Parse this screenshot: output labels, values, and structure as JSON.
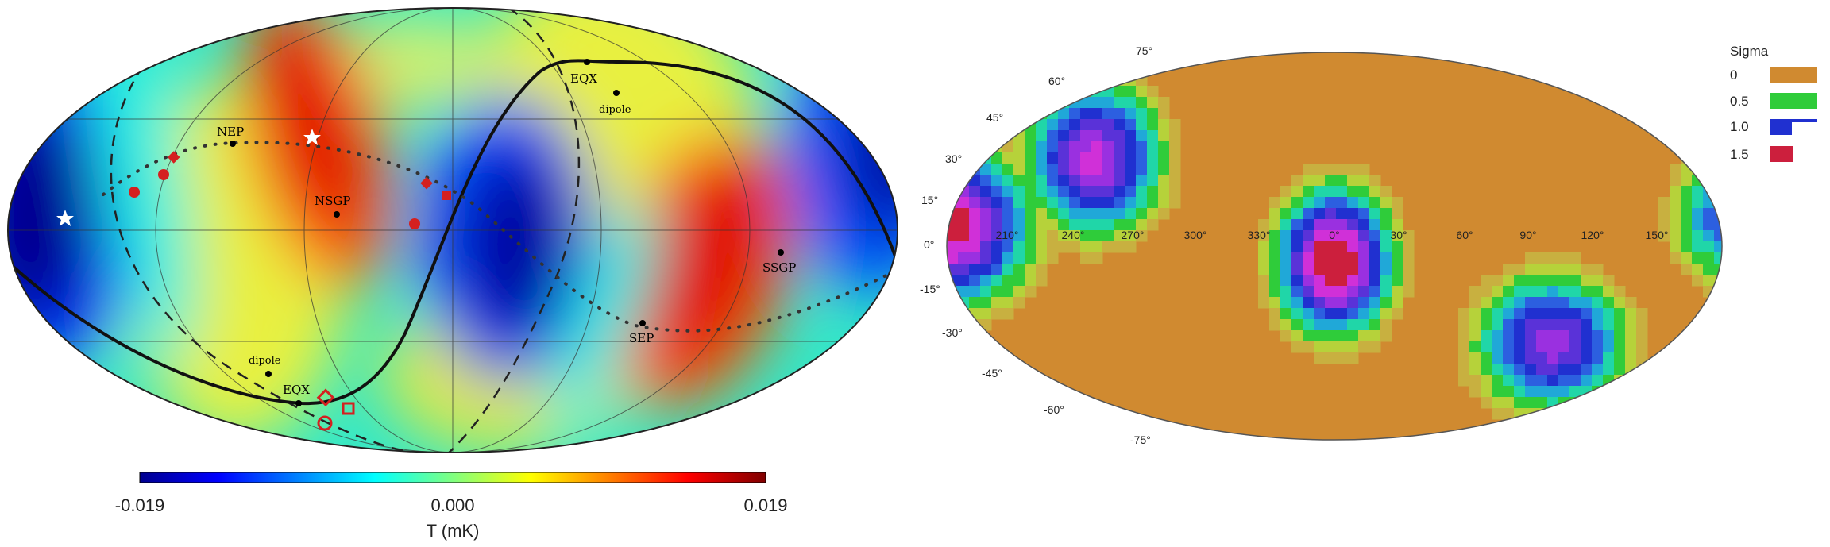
{
  "left_map": {
    "colorbar": {
      "min_label": "-0.019",
      "mid_label": "0.000",
      "max_label": "0.019",
      "range": [
        -0.019,
        0.019
      ],
      "unit_label": "T (mK)"
    },
    "labels": {
      "nep": "NEP",
      "nsgp": "NSGP",
      "eqx_top": "EQX",
      "dipole_top": "dipole",
      "ssgp": "SSGP",
      "sep": "SEP",
      "dipole_bottom": "dipole",
      "eqx_bottom": "EQX"
    },
    "colors": {
      "cold": "#00008f",
      "hot": "#8f0000",
      "marker_red": "#d42020",
      "line_black": "#111111"
    }
  },
  "right_map": {
    "legend": {
      "title": "Sigma",
      "items": [
        {
          "label": "0",
          "color": "#d08a30"
        },
        {
          "label": "0.5",
          "color": "#2fcc3a"
        },
        {
          "label": "1.0",
          "color": "#2030d0"
        },
        {
          "label": "1.5",
          "color": "#cc1f3d"
        }
      ]
    },
    "lat_labels_left": [
      "75°",
      "60°",
      "45°",
      "30°",
      "15°",
      "0°",
      "-15°",
      "-30°",
      "-45°",
      "-60°",
      "-75°"
    ],
    "lon_labels": [
      "210°",
      "240°",
      "270°",
      "300°",
      "330°",
      "0°",
      "30°",
      "60°",
      "90°",
      "120°",
      "150°"
    ]
  }
}
